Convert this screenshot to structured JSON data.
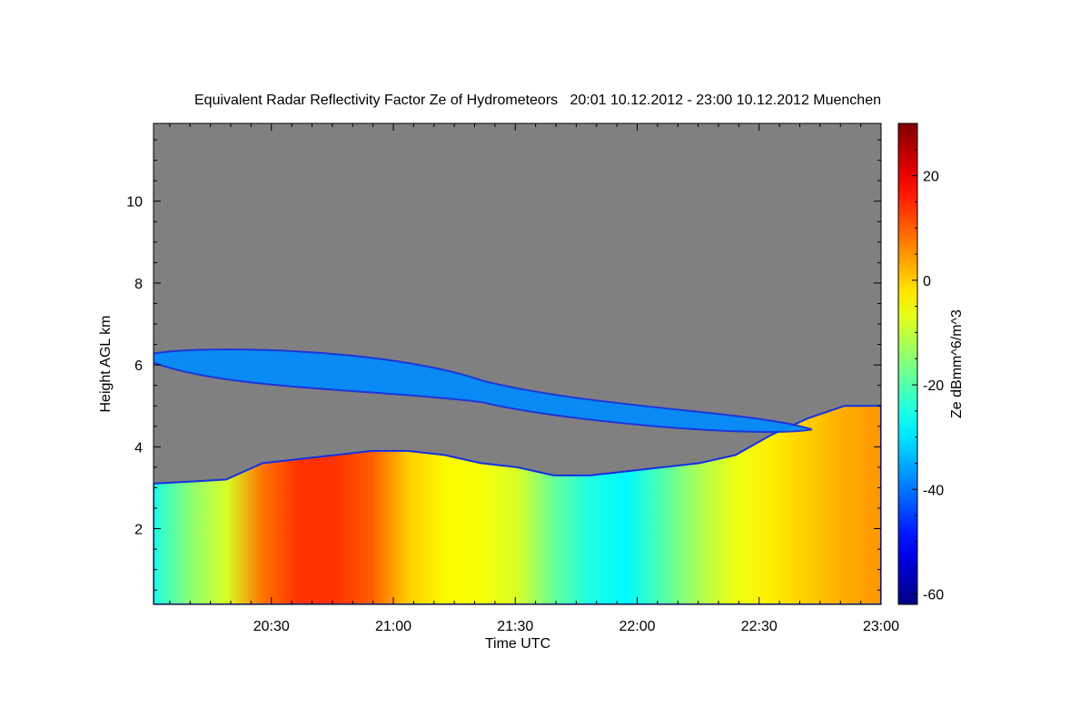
{
  "chart_data": {
    "type": "heatmap",
    "title": "Equivalent Radar Reflectivity Factor Ze of Hydrometeors   20:01 10.12.2012 - 23:00 10.12.2012 Muenchen",
    "xlabel": "Time UTC",
    "ylabel": "Height AGL km",
    "colorbar_label": "Ze dBmm^6/m^3",
    "x_range": [
      "20:01",
      "23:00"
    ],
    "x_ticks": [
      "20:30",
      "21:00",
      "21:30",
      "22:00",
      "22:30",
      "23:00"
    ],
    "ylim": [
      0.15,
      11.9
    ],
    "y_ticks": [
      2,
      4,
      6,
      8,
      10
    ],
    "colorbar_range": [
      -62,
      30
    ],
    "colorbar_ticks": [
      -60,
      -40,
      -20,
      0,
      20
    ],
    "missing_color": "#808080",
    "colormap": "jet",
    "layers": [
      {
        "name": "lower-precipitation",
        "top_km": [
          3.1,
          3.15,
          3.2,
          3.6,
          3.7,
          3.8,
          3.9,
          3.9,
          3.8,
          3.6,
          3.5,
          3.3,
          3.3,
          3.4,
          3.5,
          3.6,
          3.8,
          4.3,
          4.7,
          5.0,
          5.0
        ],
        "ze_dbz_profile": [
          -25,
          -15,
          -8,
          8,
          14,
          14,
          10,
          0,
          -4,
          -5,
          -8,
          -18,
          -25,
          -28,
          -20,
          -12,
          -6,
          -3,
          0,
          3,
          5
        ]
      },
      {
        "name": "upper-ice-cloud",
        "x_extent": [
          "20:01",
          "22:43"
        ],
        "height_km": [
          4.2,
          6.5
        ],
        "ze_dbz": -38
      }
    ]
  }
}
